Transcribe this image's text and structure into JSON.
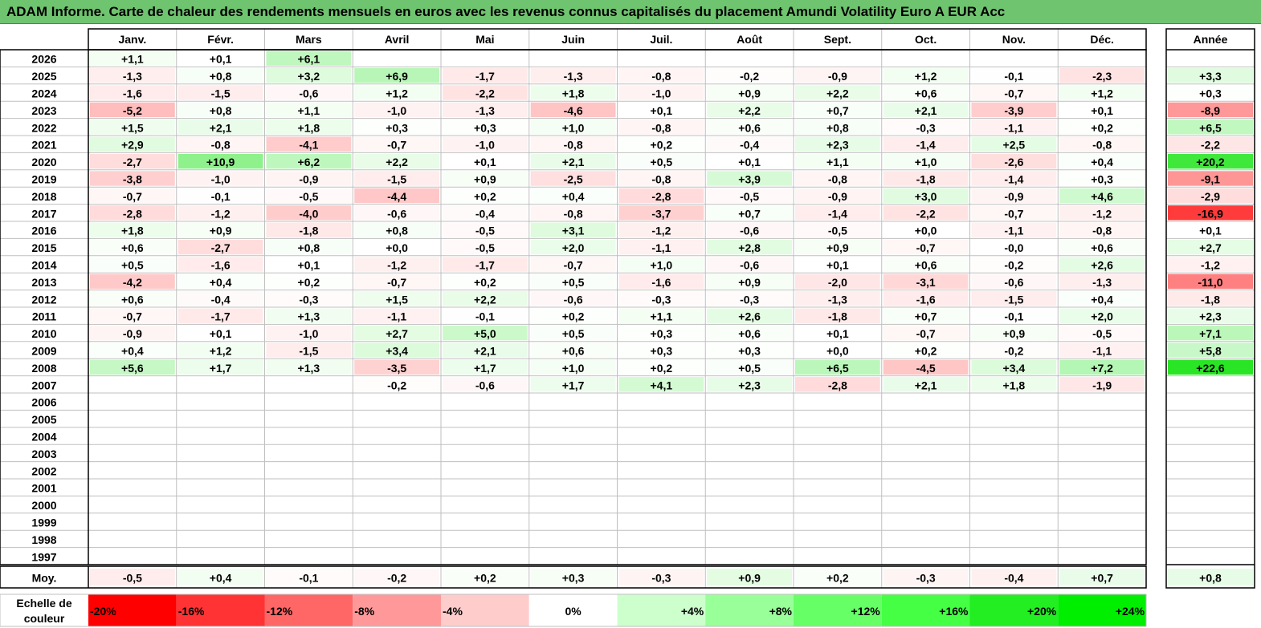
{
  "title": "ADAM Informe. Carte de chaleur des rendements mensuels en euros avec les revenus connus capitalisés du placement Amundi Volatility Euro A EUR Acc",
  "chart_data": {
    "type": "heatmap",
    "columns": [
      "Janv.",
      "Févr.",
      "Mars",
      "Avril",
      "Mai",
      "Juin",
      "Juil.",
      "Août",
      "Sept.",
      "Oct.",
      "Nov.",
      "Déc."
    ],
    "year_header": "Année",
    "rows": [
      {
        "year": "2026",
        "values": [
          "+1,1",
          "+0,1",
          "+6,1",
          "",
          "",
          "",
          "",
          "",
          "",
          "",
          "",
          ""
        ],
        "annual": ""
      },
      {
        "year": "2025",
        "values": [
          "-1,3",
          "+0,8",
          "+3,2",
          "+6,9",
          "-1,7",
          "-1,3",
          "-0,8",
          "-0,2",
          "-0,9",
          "+1,2",
          "-0,1",
          "-2,3"
        ],
        "annual": "+3,3"
      },
      {
        "year": "2024",
        "values": [
          "-1,6",
          "-1,5",
          "-0,6",
          "+1,2",
          "-2,2",
          "+1,8",
          "-1,0",
          "+0,9",
          "+2,2",
          "+0,6",
          "-0,7",
          "+1,2"
        ],
        "annual": "+0,3"
      },
      {
        "year": "2023",
        "values": [
          "-5,2",
          "+0,8",
          "+1,1",
          "-1,0",
          "-1,3",
          "-4,6",
          "+0,1",
          "+2,2",
          "+0,7",
          "+2,1",
          "-3,9",
          "+0,1"
        ],
        "annual": "-8,9"
      },
      {
        "year": "2022",
        "values": [
          "+1,5",
          "+2,1",
          "+1,8",
          "+0,3",
          "+0,3",
          "+1,0",
          "-0,8",
          "+0,6",
          "+0,8",
          "-0,3",
          "-1,1",
          "+0,2"
        ],
        "annual": "+6,5"
      },
      {
        "year": "2021",
        "values": [
          "+2,9",
          "-0,8",
          "-4,1",
          "-0,7",
          "-1,0",
          "-0,8",
          "+0,2",
          "-0,4",
          "+2,3",
          "-1,4",
          "+2,5",
          "-0,8"
        ],
        "annual": "-2,2"
      },
      {
        "year": "2020",
        "values": [
          "-2,7",
          "+10,9",
          "+6,2",
          "+2,2",
          "+0,1",
          "+2,1",
          "+0,5",
          "+0,1",
          "+1,1",
          "+1,0",
          "-2,6",
          "+0,4"
        ],
        "annual": "+20,2"
      },
      {
        "year": "2019",
        "values": [
          "-3,8",
          "-1,0",
          "-0,9",
          "-1,5",
          "+0,9",
          "-2,5",
          "-0,8",
          "+3,9",
          "-0,8",
          "-1,8",
          "-1,4",
          "+0,3"
        ],
        "annual": "-9,1"
      },
      {
        "year": "2018",
        "values": [
          "-0,7",
          "-0,1",
          "-0,5",
          "-4,4",
          "+0,2",
          "+0,4",
          "-2,8",
          "-0,5",
          "-0,9",
          "+3,0",
          "-0,9",
          "+4,6"
        ],
        "annual": "-2,9"
      },
      {
        "year": "2017",
        "values": [
          "-2,8",
          "-1,2",
          "-4,0",
          "-0,6",
          "-0,4",
          "-0,8",
          "-3,7",
          "+0,7",
          "-1,4",
          "-2,2",
          "-0,7",
          "-1,2"
        ],
        "annual": "-16,9"
      },
      {
        "year": "2016",
        "values": [
          "+1,8",
          "+0,9",
          "-1,8",
          "+0,8",
          "-0,5",
          "+3,1",
          "-1,2",
          "-0,6",
          "-0,5",
          "+0,0",
          "-1,1",
          "-0,8"
        ],
        "annual": "+0,1"
      },
      {
        "year": "2015",
        "values": [
          "+0,6",
          "-2,7",
          "+0,8",
          "+0,0",
          "-0,5",
          "+2,0",
          "-1,1",
          "+2,8",
          "+0,9",
          "-0,7",
          "-0,0",
          "+0,6"
        ],
        "annual": "+2,7"
      },
      {
        "year": "2014",
        "values": [
          "+0,5",
          "-1,6",
          "+0,1",
          "-1,2",
          "-1,7",
          "-0,7",
          "+1,0",
          "-0,6",
          "+0,1",
          "+0,6",
          "-0,2",
          "+2,6"
        ],
        "annual": "-1,2"
      },
      {
        "year": "2013",
        "values": [
          "-4,2",
          "+0,4",
          "+0,2",
          "-0,7",
          "+0,2",
          "+0,5",
          "-1,6",
          "+0,9",
          "-2,0",
          "-3,1",
          "-0,6",
          "-1,3"
        ],
        "annual": "-11,0"
      },
      {
        "year": "2012",
        "values": [
          "+0,6",
          "-0,4",
          "-0,3",
          "+1,5",
          "+2,2",
          "-0,6",
          "-0,3",
          "-0,3",
          "-1,3",
          "-1,6",
          "-1,5",
          "+0,4"
        ],
        "annual": "-1,8"
      },
      {
        "year": "2011",
        "values": [
          "-0,7",
          "-1,7",
          "+1,3",
          "-1,1",
          "-0,1",
          "+0,2",
          "+1,1",
          "+2,6",
          "-1,8",
          "+0,7",
          "-0,1",
          "+2,0"
        ],
        "annual": "+2,3"
      },
      {
        "year": "2010",
        "values": [
          "-0,9",
          "+0,1",
          "-1,0",
          "+2,7",
          "+5,0",
          "+0,5",
          "+0,3",
          "+0,6",
          "+0,1",
          "-0,7",
          "+0,9",
          "-0,5"
        ],
        "annual": "+7,1"
      },
      {
        "year": "2009",
        "values": [
          "+0,4",
          "+1,2",
          "-1,5",
          "+3,4",
          "+2,1",
          "+0,6",
          "+0,3",
          "+0,3",
          "+0,0",
          "+0,2",
          "-0,2",
          "-1,1"
        ],
        "annual": "+5,8"
      },
      {
        "year": "2008",
        "values": [
          "+5,6",
          "+1,7",
          "+1,3",
          "-3,5",
          "+1,7",
          "+1,0",
          "+0,2",
          "+0,5",
          "+6,5",
          "-4,5",
          "+3,4",
          "+7,2"
        ],
        "annual": "+22,6"
      },
      {
        "year": "2007",
        "values": [
          "",
          "",
          "",
          "-0,2",
          "-0,6",
          "+1,7",
          "+4,1",
          "+2,3",
          "-2,8",
          "+2,1",
          "+1,8",
          "-1,9"
        ],
        "annual": ""
      },
      {
        "year": "2006",
        "values": [
          "",
          "",
          "",
          "",
          "",
          "",
          "",
          "",
          "",
          "",
          "",
          ""
        ],
        "annual": ""
      },
      {
        "year": "2005",
        "values": [
          "",
          "",
          "",
          "",
          "",
          "",
          "",
          "",
          "",
          "",
          "",
          ""
        ],
        "annual": ""
      },
      {
        "year": "2004",
        "values": [
          "",
          "",
          "",
          "",
          "",
          "",
          "",
          "",
          "",
          "",
          "",
          ""
        ],
        "annual": ""
      },
      {
        "year": "2003",
        "values": [
          "",
          "",
          "",
          "",
          "",
          "",
          "",
          "",
          "",
          "",
          "",
          ""
        ],
        "annual": ""
      },
      {
        "year": "2002",
        "values": [
          "",
          "",
          "",
          "",
          "",
          "",
          "",
          "",
          "",
          "",
          "",
          ""
        ],
        "annual": ""
      },
      {
        "year": "2001",
        "values": [
          "",
          "",
          "",
          "",
          "",
          "",
          "",
          "",
          "",
          "",
          "",
          ""
        ],
        "annual": ""
      },
      {
        "year": "2000",
        "values": [
          "",
          "",
          "",
          "",
          "",
          "",
          "",
          "",
          "",
          "",
          "",
          ""
        ],
        "annual": ""
      },
      {
        "year": "1999",
        "values": [
          "",
          "",
          "",
          "",
          "",
          "",
          "",
          "",
          "",
          "",
          "",
          ""
        ],
        "annual": ""
      },
      {
        "year": "1998",
        "values": [
          "",
          "",
          "",
          "",
          "",
          "",
          "",
          "",
          "",
          "",
          "",
          ""
        ],
        "annual": ""
      },
      {
        "year": "1997",
        "values": [
          "",
          "",
          "",
          "",
          "",
          "",
          "",
          "",
          "",
          "",
          "",
          ""
        ],
        "annual": ""
      }
    ],
    "average": {
      "label": "Moy.",
      "values": [
        "-0,5",
        "+0,4",
        "-0,1",
        "-0,2",
        "+0,2",
        "+0,3",
        "-0,3",
        "+0,9",
        "+0,2",
        "-0,3",
        "-0,4",
        "+0,7"
      ],
      "annual": "+0,8"
    },
    "color_scale": {
      "label": "Echelle de couleur",
      "stops": [
        {
          "label": "-20%",
          "value": -20,
          "color": "#ff0000"
        },
        {
          "label": "-16%",
          "value": -16,
          "color": "#ff3333"
        },
        {
          "label": "-12%",
          "value": -12,
          "color": "#ff6666"
        },
        {
          "label": "-8%",
          "value": -8,
          "color": "#ff9999"
        },
        {
          "label": "-4%",
          "value": -4,
          "color": "#ffcccc"
        },
        {
          "label": "0%",
          "value": 0,
          "color": "#ffffff"
        },
        {
          "label": "+4%",
          "value": 4,
          "color": "#ccffcc"
        },
        {
          "label": "+8%",
          "value": 8,
          "color": "#99ff99"
        },
        {
          "label": "+12%",
          "value": 12,
          "color": "#66ff66"
        },
        {
          "label": "+16%",
          "value": 16,
          "color": "#44ff44"
        },
        {
          "label": "+20%",
          "value": 20,
          "color": "#22ee22"
        },
        {
          "label": "+24%",
          "value": 24,
          "color": "#00ee00"
        }
      ]
    },
    "colors": {
      "title_bar": "#6fc46f",
      "grid": "#bfbfbf",
      "border": "#000000"
    }
  }
}
